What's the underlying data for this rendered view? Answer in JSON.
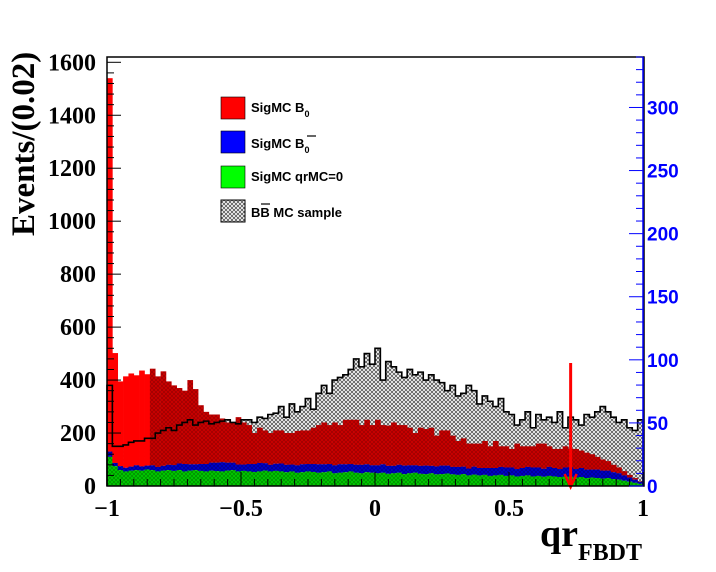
{
  "chart_data": {
    "type": "bar",
    "xlabel": "qr",
    "xlabel_sub": "FBDT",
    "ylabel": "Events/(0.02)",
    "xlim": [
      -1,
      1
    ],
    "ylim": [
      0,
      1620
    ],
    "y2lim": [
      0,
      340
    ],
    "bin_width": 0.02,
    "x_ticks": [
      -1,
      -0.5,
      0,
      0.5,
      1
    ],
    "x_tick_labels": [
      "−1",
      "−0.5",
      "0",
      "0.5",
      "1"
    ],
    "y_ticks": [
      0,
      200,
      400,
      600,
      800,
      1000,
      1200,
      1400,
      1600
    ],
    "y_tick_labels": [
      "0",
      "200",
      "400",
      "600",
      "800",
      "1000",
      "1200",
      "1400",
      "1600"
    ],
    "y2_ticks": [
      0,
      50,
      100,
      150,
      200,
      250,
      300
    ],
    "y2_tick_labels": [
      "0",
      "50",
      "100",
      "150",
      "200",
      "250",
      "300"
    ],
    "legend_position": "top-left",
    "legend": [
      {
        "label": "SigMC B",
        "sub": "0",
        "color": "#ff0000",
        "bar": false
      },
      {
        "label": "SigMC  B",
        "sub": "0",
        "color": "#0000ff",
        "bar": true
      },
      {
        "label": "SigMC qrMC=0",
        "sub": "",
        "color": "#00ff00",
        "bar": false
      },
      {
        "label": "B",
        "label_bar": "B",
        "label_rest": " MC sample",
        "color": "#cccccc",
        "hatched": true
      }
    ],
    "cut_x": 0.73,
    "cut_color": "#ff0000",
    "stacked": true,
    "series": [
      {
        "name": "SigMC qrMC=0",
        "color": "#00ff00",
        "values": [
          110,
          75,
          60,
          55,
          58,
          60,
          58,
          62,
          60,
          55,
          58,
          60,
          57,
          60,
          55,
          58,
          60,
          57,
          55,
          58,
          56,
          55,
          58,
          60,
          55,
          57,
          55,
          53,
          55,
          58,
          55,
          57,
          55,
          52,
          55,
          50,
          52,
          55,
          53,
          50,
          52,
          55,
          48,
          50,
          52,
          55,
          50,
          48,
          52,
          50,
          48,
          50,
          46,
          48,
          50,
          45,
          48,
          50,
          46,
          45,
          48,
          44,
          45,
          47,
          44,
          42,
          45,
          40,
          43,
          40,
          42,
          38,
          40,
          42,
          38,
          40,
          36,
          38,
          40,
          36,
          38,
          35,
          38,
          36,
          34,
          36,
          35,
          32,
          34,
          30,
          32,
          30,
          28,
          30,
          26,
          24,
          20,
          16,
          12,
          8
        ]
      },
      {
        "name": "SigMC  B0bar",
        "color": "#0000ff",
        "values": [
          20,
          12,
          15,
          14,
          15,
          18,
          16,
          15,
          18,
          17,
          18,
          20,
          22,
          25,
          28,
          24,
          22,
          26,
          28,
          30,
          32,
          35,
          30,
          28,
          26,
          24,
          28,
          30,
          32,
          28,
          25,
          27,
          30,
          28,
          26,
          28,
          30,
          28,
          30,
          32,
          30,
          28,
          30,
          32,
          30,
          28,
          30,
          32,
          30,
          28,
          30,
          32,
          30,
          28,
          30,
          32,
          30,
          28,
          30,
          32,
          28,
          30,
          32,
          30,
          28,
          30,
          28,
          26,
          30,
          28,
          26,
          30,
          28,
          30,
          32,
          30,
          28,
          30,
          32,
          34,
          32,
          30,
          34,
          32,
          30,
          34,
          36,
          32,
          34,
          32,
          30,
          32,
          30,
          28,
          26,
          24,
          20,
          16,
          12,
          8
        ]
      },
      {
        "name": "SigMC B0",
        "color": "#ff0000",
        "values": [
          1410,
          415,
          320,
          345,
          352,
          340,
          362,
          345,
          365,
          342,
          357,
          315,
          301,
          285,
          277,
          318,
          284,
          222,
          197,
          182,
          182,
          165,
          152,
          152,
          179,
          159,
          147,
          117,
          133,
          124,
          120,
          126,
          125,
          120,
          119,
          130,
          128,
          127,
          137,
          148,
          158,
          147,
          162,
          148,
          168,
          167,
          170,
          150,
          168,
          152,
          172,
          148,
          152,
          164,
          150,
          153,
          142,
          122,
          144,
          138,
          144,
          116,
          133,
          133,
          118,
          98,
          107,
          94,
          87,
          92,
          102,
          82,
          102,
          78,
          80,
          70,
          96,
          82,
          78,
          80,
          90,
          95,
          78,
          72,
          76,
          80,
          70,
          76,
          66,
          64,
          58,
          48,
          42,
          36,
          28,
          22,
          16,
          10,
          6,
          2
        ]
      },
      {
        "name": "BB MC sample",
        "color": "#cccccc",
        "hatched": true,
        "overlay": true,
        "values": [
          380,
          150,
          150,
          155,
          165,
          170,
          170,
          180,
          180,
          200,
          210,
          220,
          210,
          230,
          240,
          250,
          230,
          240,
          245,
          235,
          240,
          245,
          250,
          240,
          235,
          250,
          250,
          240,
          260,
          255,
          270,
          275,
          300,
          260,
          310,
          280,
          300,
          330,
          290,
          350,
          380,
          350,
          400,
          410,
          420,
          440,
          480,
          450,
          500,
          460,
          520,
          400,
          470,
          450,
          430,
          410,
          440,
          420,
          430,
          400,
          420,
          400,
          390,
          360,
          380,
          340,
          350,
          380,
          360,
          310,
          340,
          320,
          300,
          330,
          280,
          270,
          230,
          250,
          280,
          220,
          270,
          250,
          260,
          240,
          280,
          220,
          260,
          250,
          230,
          270,
          260,
          280,
          300,
          280,
          260,
          240,
          250,
          220,
          210,
          250
        ]
      }
    ]
  }
}
